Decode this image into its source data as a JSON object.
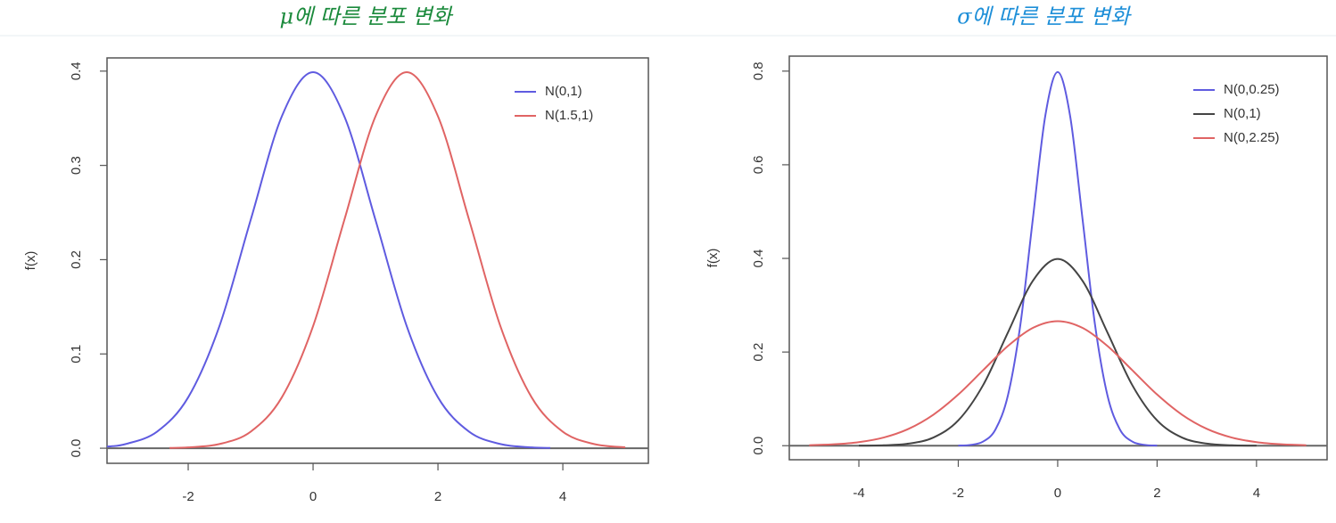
{
  "chart_data": [
    {
      "type": "line",
      "title": "μ에 따른 분포 변화",
      "ylabel": "f(x)",
      "xlim": [
        -3.3,
        5.37
      ],
      "ylim": [
        -0.016,
        0.414
      ],
      "xticks": [
        -2,
        0,
        2,
        4
      ],
      "yticks": [
        {
          "value": 0,
          "label": "0.0"
        },
        0.1,
        0.2,
        0.3,
        0.4
      ],
      "hline": 0,
      "legend": "topright",
      "series": [
        {
          "name": "N(0,1)",
          "color": "#5f5be0",
          "x": [
            -3.3,
            -3,
            -2.5,
            -2,
            -1.5,
            -1,
            -0.5,
            0,
            0.5,
            1,
            1.5,
            2,
            2.5,
            3,
            3.5,
            3.8
          ],
          "values": [
            0.00172,
            0.00443,
            0.0175,
            0.054,
            0.1295,
            0.242,
            0.3521,
            0.3989,
            0.3521,
            0.242,
            0.1295,
            0.054,
            0.0175,
            0.00443,
            0.00087,
            0.00029
          ]
        },
        {
          "name": "N(1.5,1)",
          "color": "#e06464",
          "x": [
            -2.3,
            -2,
            -1.5,
            -1,
            -0.5,
            0,
            0.5,
            1,
            1.5,
            2,
            2.5,
            3,
            3.5,
            4,
            4.5,
            5
          ],
          "values": [
            0.00029,
            0.00087,
            0.00443,
            0.0175,
            0.054,
            0.1295,
            0.242,
            0.3521,
            0.3989,
            0.3521,
            0.242,
            0.1295,
            0.054,
            0.0175,
            0.00443,
            0.00087
          ]
        }
      ]
    },
    {
      "type": "line",
      "title": "σ에 따른 분포 변화",
      "ylabel": "f(x)",
      "xlim": [
        -5.4,
        5.42
      ],
      "ylim": [
        -0.03,
        0.832
      ],
      "xticks": [
        -4,
        -2,
        0,
        2,
        4
      ],
      "yticks": [
        {
          "value": 0,
          "label": "0.0"
        },
        0.2,
        0.4,
        0.6,
        0.8
      ],
      "hline": 0,
      "legend": "topright",
      "series": [
        {
          "name": "N(0,0.25)",
          "color": "#5f5be0",
          "x": [
            -2,
            -1.75,
            -1.5,
            -1.25,
            -1,
            -0.75,
            -0.5,
            -0.25,
            0,
            0.25,
            0.5,
            0.75,
            1,
            1.25,
            1.5,
            1.75,
            2
          ],
          "values": [
            0.000268,
            0.00174,
            0.00886,
            0.035,
            0.108,
            0.259,
            0.484,
            0.7042,
            0.7979,
            0.7042,
            0.484,
            0.259,
            0.108,
            0.035,
            0.00886,
            0.00174,
            0.000268
          ]
        },
        {
          "name": "N(0,1)",
          "color": "#444444",
          "x": [
            -4,
            -3.5,
            -3,
            -2.5,
            -2,
            -1.5,
            -1,
            -0.5,
            0,
            0.5,
            1,
            1.5,
            2,
            2.5,
            3,
            3.5,
            4
          ],
          "values": [
            0.000134,
            0.00087,
            0.00443,
            0.0175,
            0.054,
            0.1295,
            0.242,
            0.3521,
            0.3989,
            0.3521,
            0.242,
            0.1295,
            0.054,
            0.0175,
            0.00443,
            0.00087,
            0.000134
          ]
        },
        {
          "name": "N(0,2.25)",
          "color": "#e06464",
          "x": [
            -5,
            -4.5,
            -4,
            -3.5,
            -3,
            -2.5,
            -2,
            -1.5,
            -1,
            -0.5,
            0,
            0.5,
            1,
            1.5,
            2,
            2.5,
            3,
            3.5,
            4,
            4.5,
            5
          ],
          "values": [
            0.00103,
            0.00295,
            0.0076,
            0.0175,
            0.036,
            0.0663,
            0.1093,
            0.1613,
            0.213,
            0.2516,
            0.266,
            0.2516,
            0.213,
            0.1613,
            0.1093,
            0.0663,
            0.036,
            0.0175,
            0.0076,
            0.00295,
            0.00103
          ]
        }
      ]
    }
  ]
}
